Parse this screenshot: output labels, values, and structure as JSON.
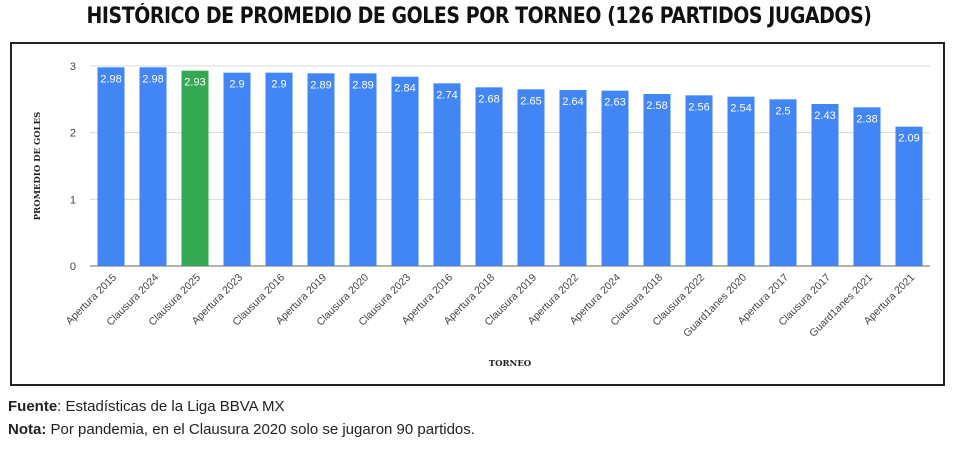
{
  "chart_data": {
    "type": "bar",
    "title": "HISTÓRICO DE PROMEDIO DE GOLES POR TORNEO (126 PARTIDOS JUGADOS)",
    "xlabel": "TORNEO",
    "ylabel": "PROMEDIO DE GOLES",
    "ylim": [
      0,
      3
    ],
    "yticks": [
      0,
      1,
      2,
      3
    ],
    "categories": [
      "Apertura 2015",
      "Clausura 2024",
      "Clausura 2025",
      "Apertura 2023",
      "Clausura 2016",
      "Apertura 2019",
      "Clausura 2020",
      "Clausura 2023",
      "Apertura 2016",
      "Apertura 2018",
      "Clausura 2019",
      "Apertura 2022",
      "Apertura 2024",
      "Clausura 2018",
      "Clausura 2022",
      "Guard1anes 2020",
      "Apertura 2017",
      "Clausura 2017",
      "Guard1anes 2021",
      "Apertura 2021"
    ],
    "values": [
      2.98,
      2.98,
      2.93,
      2.9,
      2.9,
      2.89,
      2.89,
      2.84,
      2.74,
      2.68,
      2.65,
      2.64,
      2.63,
      2.58,
      2.56,
      2.54,
      2.5,
      2.43,
      2.38,
      2.09
    ],
    "value_labels": [
      "2.98",
      "2.98",
      "2.93",
      "2.9",
      "2.9",
      "2.89",
      "2.89",
      "2.84",
      "2.74",
      "2.68",
      "2.65",
      "2.64",
      "2.63",
      "2.58",
      "2.56",
      "2.54",
      "2.5",
      "2.43",
      "2.38",
      "2.09"
    ],
    "highlight_index": 2,
    "colors": {
      "bar": "#4285F4",
      "highlight": "#34A853",
      "grid": "#d9d9d9"
    },
    "grid": true
  },
  "footer": {
    "source_label": "Fuente",
    "source_text": ": Estadísticas de la Liga BBVA MX",
    "note_label": "Nota:",
    "note_text": " Por pandemia, en el Clausura 2020 solo se jugaron 90 partidos."
  }
}
